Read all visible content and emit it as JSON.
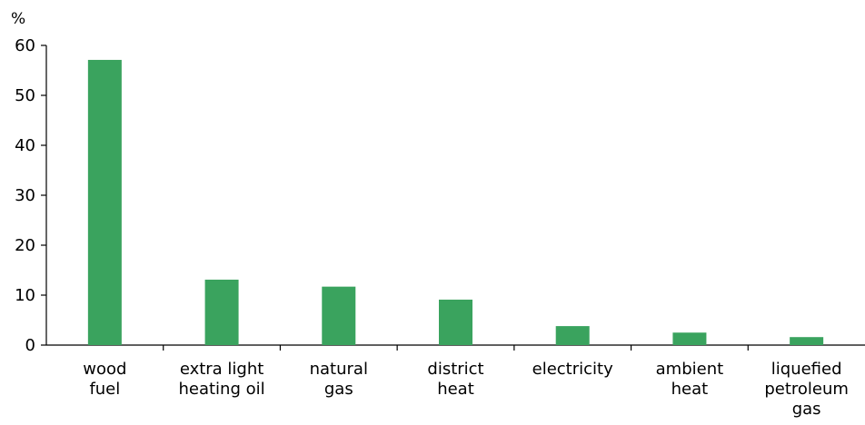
{
  "chart_data": {
    "type": "bar",
    "ylabel": "%",
    "categories": [
      [
        "wood",
        "fuel"
      ],
      [
        "extra light",
        "heating oil"
      ],
      [
        "natural",
        "gas"
      ],
      [
        "district",
        "heat"
      ],
      [
        "electricity"
      ],
      [
        "ambient",
        "heat"
      ],
      [
        "liquefied",
        "petroleum",
        "gas"
      ]
    ],
    "values": [
      57.1,
      13.1,
      11.7,
      9.1,
      3.8,
      2.5,
      1.6
    ],
    "ylim": [
      0,
      60
    ],
    "yticks": [
      0,
      10,
      20,
      30,
      40,
      50,
      60
    ],
    "grid": false,
    "bar_color": "#3aa35e"
  }
}
